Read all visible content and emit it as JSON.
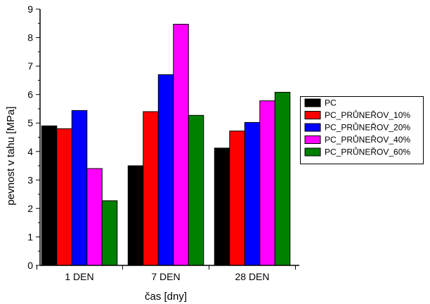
{
  "chart_data": {
    "type": "bar",
    "categories": [
      "1 DEN",
      "7 DEN",
      "28 DEN"
    ],
    "series": [
      {
        "name": "PC",
        "color": "#000000",
        "values": [
          4.9,
          3.5,
          4.12
        ]
      },
      {
        "name": "PC_PRŮNEŘOV_10%",
        "color": "#ff0000",
        "values": [
          4.8,
          5.4,
          4.72
        ]
      },
      {
        "name": "PC_PRŮNEŘOV_20%",
        "color": "#0000ff",
        "values": [
          5.44,
          6.7,
          5.02
        ]
      },
      {
        "name": "PC_PRŮNEŘOV_40%",
        "color": "#ff00ff",
        "values": [
          3.4,
          8.47,
          5.78
        ]
      },
      {
        "name": "PC_PRŮNEŘOV_60%",
        "color": "#008000",
        "values": [
          2.27,
          5.27,
          6.08
        ]
      }
    ],
    "xlabel": "čas [dny]",
    "ylabel": "pevnost v tahu [MPa]",
    "ylim": [
      0,
      9
    ],
    "yticks": [
      "0",
      "1",
      "2",
      "3",
      "4",
      "5",
      "6",
      "7",
      "8",
      "9"
    ],
    "grid": false,
    "legend_position": "right"
  }
}
